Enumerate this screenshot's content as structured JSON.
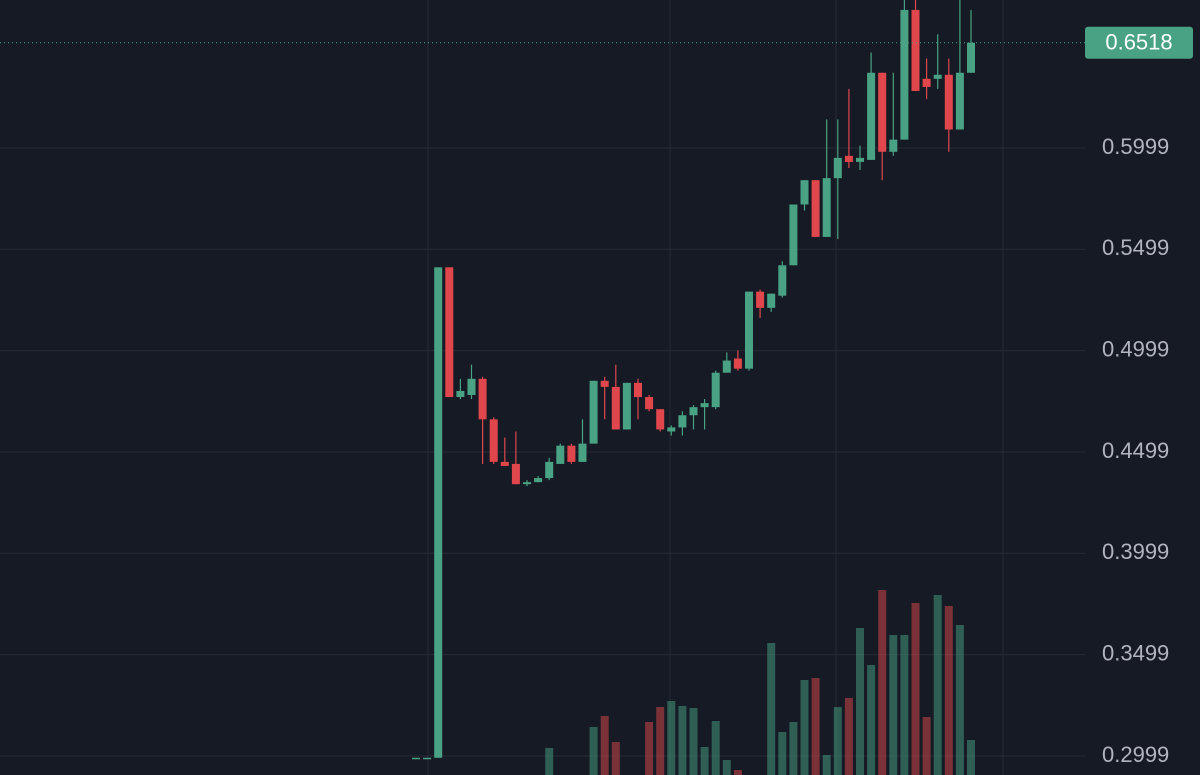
{
  "chart_data": {
    "type": "candlestick",
    "open": [
      0.299,
      0.299,
      0.299,
      0.541,
      0.477,
      0.478,
      0.486,
      0.466,
      0.445,
      0.444,
      0.434,
      0.435,
      0.437,
      0.444,
      0.453,
      0.445,
      0.454,
      0.485,
      0.482,
      0.461,
      0.484,
      0.477,
      0.471,
      0.46,
      0.462,
      0.468,
      0.472,
      0.472,
      0.489,
      0.496,
      0.491,
      0.529,
      0.521,
      0.527,
      0.542,
      0.572,
      0.584,
      0.556,
      0.585,
      0.596,
      0.593,
      0.594,
      0.637,
      0.598,
      0.604,
      0.668,
      0.634,
      0.634,
      0.636,
      0.609,
      0.637
    ],
    "high": [
      0.299,
      0.299,
      0.541,
      0.541,
      0.486,
      0.493,
      0.487,
      0.467,
      0.457,
      0.46,
      0.436,
      0.438,
      0.447,
      0.454,
      0.454,
      0.466,
      0.485,
      0.487,
      0.493,
      0.484,
      0.486,
      0.478,
      0.471,
      0.463,
      0.47,
      0.473,
      0.476,
      0.49,
      0.499,
      0.5,
      0.529,
      0.53,
      0.528,
      0.544,
      0.572,
      0.584,
      0.584,
      0.614,
      0.614,
      0.629,
      0.601,
      0.647,
      0.637,
      0.637,
      0.673,
      0.673,
      0.644,
      0.656,
      0.644,
      0.673,
      0.668
    ],
    "low": [
      0.299,
      0.299,
      0.299,
      0.477,
      0.476,
      0.476,
      0.444,
      0.444,
      0.443,
      0.434,
      0.433,
      0.435,
      0.436,
      0.444,
      0.444,
      0.445,
      0.454,
      0.466,
      0.461,
      0.461,
      0.466,
      0.47,
      0.46,
      0.458,
      0.458,
      0.461,
      0.461,
      0.471,
      0.489,
      0.49,
      0.49,
      0.516,
      0.519,
      0.526,
      0.542,
      0.569,
      0.556,
      0.556,
      0.555,
      0.59,
      0.589,
      0.594,
      0.584,
      0.596,
      0.604,
      0.628,
      0.624,
      0.629,
      0.598,
      0.609,
      0.637
    ],
    "close": [
      0.299,
      0.299,
      0.541,
      0.477,
      0.48,
      0.486,
      0.466,
      0.445,
      0.443,
      0.434,
      0.435,
      0.437,
      0.445,
      0.453,
      0.445,
      0.454,
      0.485,
      0.482,
      0.461,
      0.484,
      0.477,
      0.471,
      0.461,
      0.462,
      0.468,
      0.472,
      0.474,
      0.489,
      0.495,
      0.491,
      0.529,
      0.521,
      0.528,
      0.542,
      0.572,
      0.584,
      0.556,
      0.585,
      0.595,
      0.593,
      0.595,
      0.637,
      0.598,
      0.604,
      0.668,
      0.628,
      0.63,
      0.636,
      0.609,
      0.637,
      0.6518
    ],
    "volume": [
      null,
      null,
      null,
      null,
      null,
      null,
      null,
      null,
      null,
      null,
      null,
      null,
      27,
      null,
      null,
      null,
      48,
      59,
      33,
      null,
      null,
      53,
      68,
      74,
      69,
      67,
      28,
      54,
      15,
      5,
      null,
      null,
      132,
      43,
      53,
      95,
      97,
      20,
      68,
      77,
      147,
      110,
      185,
      140,
      140,
      172,
      58,
      180,
      169,
      150,
      35
    ],
    "last_price": 0.6518,
    "up_color": "#48a283",
    "down_color": "#e0474c",
    "ylim": [
      0.2905,
      0.6729
    ],
    "yticks": [
      0.2999,
      0.3499,
      0.3999,
      0.4499,
      0.4999,
      0.5499,
      0.5999
    ],
    "grid": true
  }
}
